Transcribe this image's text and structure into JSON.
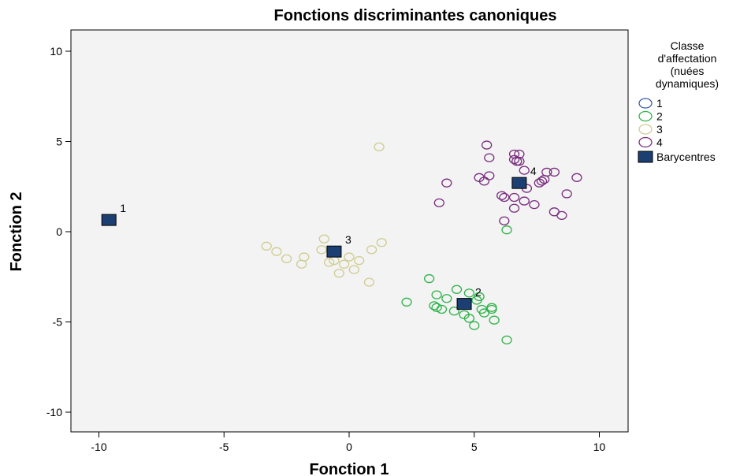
{
  "chart_data": {
    "type": "scatter",
    "title": "Fonctions discriminantes canoniques",
    "xlabel": "Fonction 1",
    "ylabel": "Fonction 2",
    "xlim": [
      -11.5,
      15.5
    ],
    "ylim": [
      -11,
      11.2
    ],
    "xticks": [
      -10,
      -5,
      0,
      5,
      10
    ],
    "yticks": [
      -10,
      -5,
      0,
      5,
      10
    ],
    "grid": false,
    "legend_title": "Classe d'affectation (nuées dynamiques)",
    "legend_title_lines": [
      "Classe",
      "d'affectation",
      "(nuées",
      "dynamiques)"
    ],
    "legend_position": "right",
    "series": [
      {
        "name": "1",
        "color": "#3b5ba5",
        "marker": "open-circle",
        "points": []
      },
      {
        "name": "2",
        "color": "#2eb34a",
        "marker": "open-circle",
        "points": [
          [
            3.2,
            -2.6
          ],
          [
            2.3,
            -3.9
          ],
          [
            3.5,
            -3.5
          ],
          [
            3.9,
            -3.7
          ],
          [
            4.3,
            -3.2
          ],
          [
            4.8,
            -3.4
          ],
          [
            3.4,
            -4.1
          ],
          [
            3.5,
            -4.2
          ],
          [
            3.7,
            -4.3
          ],
          [
            4.2,
            -4.4
          ],
          [
            4.6,
            -4.6
          ],
          [
            4.8,
            -4.8
          ],
          [
            5.0,
            -5.2
          ],
          [
            5.1,
            -3.8
          ],
          [
            5.2,
            -3.6
          ],
          [
            5.3,
            -4.3
          ],
          [
            5.4,
            -4.5
          ],
          [
            5.7,
            -4.2
          ],
          [
            5.7,
            -4.3
          ],
          [
            5.8,
            -4.9
          ],
          [
            6.3,
            0.1
          ],
          [
            6.3,
            -6.0
          ]
        ]
      },
      {
        "name": "3",
        "color": "#cfcc92",
        "marker": "open-circle",
        "points": [
          [
            -3.3,
            -0.8
          ],
          [
            -2.9,
            -1.1
          ],
          [
            -2.5,
            -1.5
          ],
          [
            -1.9,
            -1.8
          ],
          [
            -1.8,
            -1.4
          ],
          [
            -1.1,
            -1.0
          ],
          [
            -1.0,
            -0.4
          ],
          [
            -0.8,
            -1.7
          ],
          [
            -0.6,
            -1.6
          ],
          [
            -0.4,
            -2.3
          ],
          [
            -0.2,
            -1.8
          ],
          [
            0.0,
            -1.4
          ],
          [
            0.2,
            -2.1
          ],
          [
            0.4,
            -1.6
          ],
          [
            0.8,
            -2.8
          ],
          [
            0.9,
            -1.0
          ],
          [
            1.3,
            -0.6
          ],
          [
            1.2,
            4.7
          ]
        ]
      },
      {
        "name": "4",
        "color": "#7a2d7f",
        "marker": "open-circle",
        "points": [
          [
            3.6,
            1.6
          ],
          [
            3.9,
            2.7
          ],
          [
            5.2,
            3.0
          ],
          [
            5.4,
            2.8
          ],
          [
            5.6,
            3.1
          ],
          [
            5.5,
            4.8
          ],
          [
            5.6,
            4.1
          ],
          [
            6.1,
            2.0
          ],
          [
            6.2,
            1.9
          ],
          [
            6.2,
            0.6
          ],
          [
            6.6,
            4.3
          ],
          [
            6.6,
            4.0
          ],
          [
            6.8,
            4.3
          ],
          [
            6.7,
            3.9
          ],
          [
            6.6,
            1.9
          ],
          [
            6.6,
            1.3
          ],
          [
            7.0,
            3.4
          ],
          [
            7.1,
            2.4
          ],
          [
            7.0,
            1.7
          ],
          [
            7.4,
            1.5
          ],
          [
            7.6,
            2.7
          ],
          [
            7.7,
            2.8
          ],
          [
            7.8,
            2.9
          ],
          [
            7.9,
            3.3
          ],
          [
            8.2,
            3.3
          ],
          [
            8.2,
            1.1
          ],
          [
            8.5,
            0.9
          ],
          [
            8.7,
            2.1
          ],
          [
            9.1,
            3.0
          ],
          [
            6.8,
            3.9
          ]
        ]
      }
    ],
    "centroids": {
      "name": "Barycentres",
      "color": "#1b3f72",
      "marker": "filled-square",
      "points": [
        {
          "label": "1",
          "x": -9.6,
          "y": 0.65
        },
        {
          "label": "2",
          "x": 4.6,
          "y": -4.0
        },
        {
          "label": "3",
          "x": -0.6,
          "y": -1.1
        },
        {
          "label": "4",
          "x": 6.8,
          "y": 2.7
        }
      ]
    }
  }
}
